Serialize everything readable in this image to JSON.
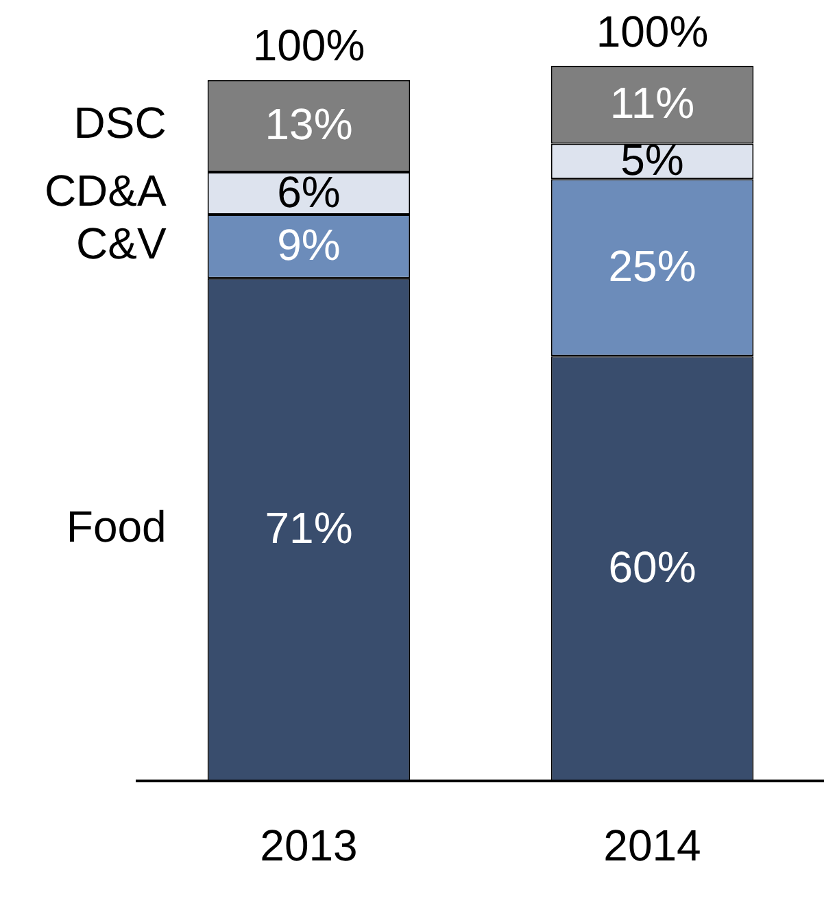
{
  "chart_data": {
    "type": "bar",
    "categories": [
      "2013",
      "2014"
    ],
    "stacked": true,
    "series": [
      {
        "name": "Food",
        "color": "#394d6d",
        "values": [
          71,
          60
        ],
        "value_labels": [
          "71%",
          "60%"
        ]
      },
      {
        "name": "C&V",
        "color": "#6c8cba",
        "values": [
          9,
          25
        ],
        "value_labels": [
          "9%",
          "25%"
        ]
      },
      {
        "name": "CD&A",
        "color": "#dde3ee",
        "values": [
          6,
          5
        ],
        "value_labels": [
          "6%",
          "5%"
        ]
      },
      {
        "name": "DSC",
        "color": "#7f7f7f",
        "values": [
          13,
          11
        ],
        "value_labels": [
          "13%",
          "11%"
        ]
      }
    ],
    "totals": [
      "100%",
      "100%"
    ],
    "ylim": [
      0,
      101
    ],
    "tick_labels": "x",
    "grid": false,
    "legend": "left"
  }
}
